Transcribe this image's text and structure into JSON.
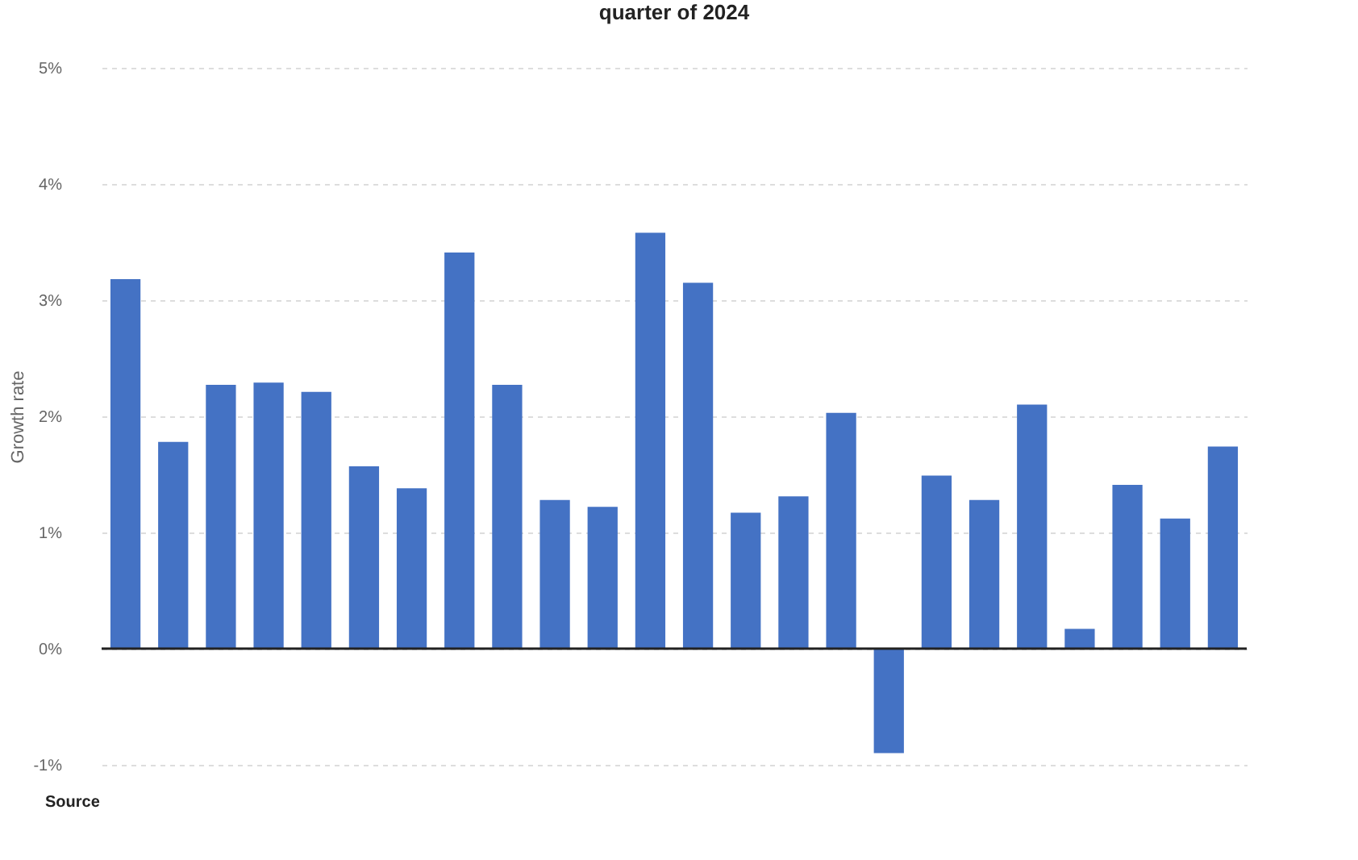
{
  "chart_data": {
    "type": "bar",
    "title": "quarter of 2024",
    "ylabel": "Growth rate",
    "categories": [
      null,
      null,
      null,
      null,
      null,
      null,
      null,
      null,
      null,
      null,
      null,
      null,
      null,
      null,
      null,
      null,
      null,
      null,
      null,
      null,
      null,
      null,
      null,
      null
    ],
    "values": [
      3.18,
      1.78,
      2.27,
      2.29,
      2.21,
      1.57,
      1.38,
      3.41,
      2.27,
      1.28,
      1.22,
      3.58,
      3.15,
      1.17,
      1.31,
      2.03,
      -0.9,
      1.49,
      1.28,
      2.1,
      0.17,
      1.41,
      1.12,
      1.74
    ],
    "color": "#4472c4",
    "ylim": [
      -1,
      5
    ],
    "yticks": [
      {
        "value": -1,
        "label": "-1%"
      },
      {
        "value": 0,
        "label": "0%"
      },
      {
        "value": 1,
        "label": "1%"
      },
      {
        "value": 2,
        "label": "2%"
      },
      {
        "value": 3,
        "label": "3%"
      },
      {
        "value": 4,
        "label": "4%"
      },
      {
        "value": 5,
        "label": "5%"
      }
    ],
    "grid": "y",
    "tick_labels": "y",
    "annotations": [
      "Source"
    ]
  }
}
